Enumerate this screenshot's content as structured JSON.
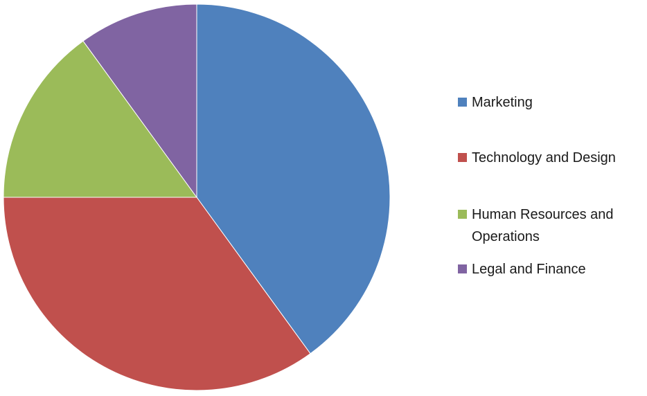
{
  "chart_data": {
    "type": "pie",
    "start_angle_deg": 0,
    "direction": "clockwise",
    "legend_position": "right",
    "slices": [
      {
        "label": "Marketing",
        "value": 40,
        "color": "#4F81BD"
      },
      {
        "label": "Technology and  Design",
        "value": 35,
        "color": "#C0504D"
      },
      {
        "label": "Human Resources and Operations",
        "value": 15,
        "color": "#9BBB59"
      },
      {
        "label": "Legal and Finance",
        "value": 10,
        "color": "#8064A2"
      }
    ]
  }
}
